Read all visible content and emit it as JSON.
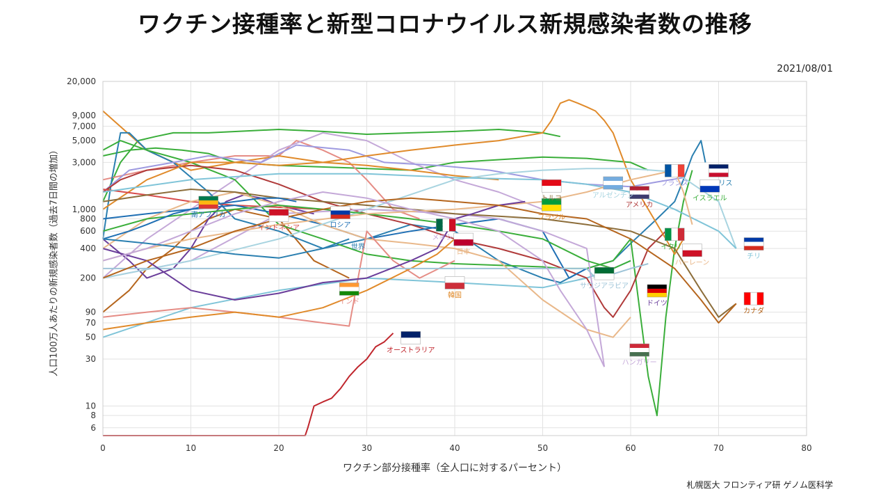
{
  "title": "ワクチン接種率と新型コロナウイルス新規感染者数の推移",
  "date": "2021/08/01",
  "credit": "札幌医大 フロンティア研 ゲノム医科学",
  "chart_data": {
    "type": "line",
    "xlabel": "ワクチン部分接種率（全人口に対するパーセント）",
    "ylabel": "人口100万人あたりの新規感染者数（過去7日間の増加）",
    "xlim": [
      0,
      80
    ],
    "ylim": [
      5,
      20000
    ],
    "yscale": "log",
    "grid": true,
    "x_ticks": [
      0,
      10,
      20,
      30,
      40,
      50,
      60,
      70,
      80
    ],
    "y_ticks": [
      6,
      8,
      10,
      30,
      50,
      70,
      90,
      200,
      400,
      600,
      800,
      1000,
      3000,
      5000,
      7000,
      9000,
      20000
    ],
    "y_tick_labels": [
      "6",
      "8",
      "10",
      "30",
      "50",
      "70",
      "90",
      "200",
      "400",
      "600",
      "800",
      "1,000",
      "3,000",
      "5,000",
      "7,000",
      "9,000",
      "20,000"
    ],
    "series": [
      {
        "name": "イギリス",
        "color": "#2a7fb0",
        "x": [
          0,
          1,
          2,
          3,
          5,
          8,
          12,
          15,
          20,
          25,
          30,
          35,
          40,
          45,
          50,
          52,
          55,
          58,
          60,
          63,
          65,
          66,
          67,
          68,
          68.5
        ],
        "y": [
          500,
          2000,
          6000,
          6000,
          4000,
          3000,
          1500,
          800,
          600,
          400,
          500,
          700,
          600,
          300,
          200,
          180,
          250,
          300,
          450,
          800,
          1200,
          2000,
          3500,
          5000,
          3000
        ],
        "label": {
          "x": 70,
          "y": 2000
        }
      },
      {
        "name": "イスラエル",
        "color": "#3aae3a",
        "x": [
          0,
          2,
          5,
          10,
          15,
          20,
          25,
          30,
          35,
          40,
          45,
          50,
          52,
          55,
          58,
          60,
          61,
          62,
          63,
          64,
          65,
          66,
          67
        ],
        "y": [
          4000,
          5000,
          4000,
          3000,
          2000,
          700,
          500,
          350,
          300,
          280,
          270,
          260,
          250,
          250,
          300,
          500,
          100,
          20,
          8,
          80,
          400,
          1200,
          2500
        ],
        "label": {
          "x": 69,
          "y": 1400
        }
      },
      {
        "name": "フランス",
        "color": "#9e9ae0",
        "x": [
          0,
          3,
          8,
          12,
          18,
          22,
          28,
          32,
          38,
          44,
          50,
          55,
          60,
          63,
          66
        ],
        "y": [
          1500,
          2500,
          3000,
          3500,
          3000,
          4500,
          4000,
          3000,
          2800,
          2500,
          2000,
          1800,
          1700,
          1900,
          2100
        ],
        "label": {
          "x": 65,
          "y": 2000
        }
      },
      {
        "name": "アメリカ",
        "color": "#b03a3a",
        "x": [
          0,
          2,
          5,
          10,
          15,
          20,
          25,
          30,
          35,
          40,
          45,
          50,
          55,
          57,
          58,
          60,
          62,
          64
        ],
        "y": [
          1500,
          2000,
          2500,
          2800,
          2500,
          1800,
          1200,
          900,
          700,
          500,
          400,
          300,
          200,
          100,
          80,
          150,
          400,
          600
        ],
        "label": {
          "x": 61,
          "y": 1200
        }
      },
      {
        "name": "ブラジル",
        "color": "#e08a2a",
        "x": [
          0,
          5,
          10,
          15,
          20,
          25,
          30,
          35,
          40,
          45,
          50,
          51,
          52,
          53,
          54,
          55,
          56,
          57,
          58,
          60,
          62,
          64,
          65,
          66
        ],
        "y": [
          1000,
          2000,
          3000,
          3000,
          2800,
          3000,
          3500,
          4000,
          4500,
          5000,
          6000,
          8000,
          12000,
          13000,
          12000,
          11000,
          10000,
          8000,
          6000,
          2000,
          1000,
          500,
          350,
          500
        ],
        "label": {
          "x": 51,
          "y": 900
        }
      },
      {
        "name": "インドネシア",
        "color": "#d84b4b",
        "x": [
          0,
          5,
          10,
          15,
          20,
          25
        ],
        "y": [
          1600,
          1400,
          1200,
          1100,
          1050,
          1000
        ],
        "label": {
          "x": 20,
          "y": 700
        }
      },
      {
        "name": "ロシア",
        "color": "#1f6fb4",
        "x": [
          0,
          5,
          10,
          15,
          20,
          25,
          30,
          35,
          40,
          45,
          50,
          53,
          55
        ],
        "y": [
          800,
          900,
          1000,
          1100,
          900,
          700,
          500,
          600,
          700,
          800,
          600,
          200,
          250
        ],
        "label": {
          "x": 27,
          "y": 750
        }
      },
      {
        "name": "メキシコ",
        "color": "#c4a8d8",
        "x": [
          0,
          10,
          20,
          30,
          40,
          45,
          50,
          55,
          57
        ],
        "y": [
          200,
          300,
          900,
          1000,
          900,
          800,
          600,
          400,
          25
        ],
        "label": {
          "x": 39,
          "y": 560
        }
      },
      {
        "name": "日本",
        "color": "#e9b88a",
        "x": [
          0,
          5,
          10,
          15,
          20,
          25,
          30,
          35,
          40,
          45,
          50,
          55,
          58,
          60
        ],
        "y": [
          400,
          800,
          1200,
          1500,
          1100,
          700,
          500,
          450,
          400,
          300,
          120,
          60,
          50,
          80
        ],
        "label": {
          "x": 41,
          "y": 400
        }
      },
      {
        "name": "インド",
        "color": "#e58c85",
        "x": [
          0,
          5,
          10,
          15,
          20,
          25,
          28,
          30,
          33,
          36,
          40
        ],
        "y": [
          80,
          90,
          100,
          90,
          80,
          70,
          65,
          600,
          300,
          200,
          300
        ],
        "label": {
          "x": 28,
          "y": 125
        }
      },
      {
        "name": "韓国",
        "color": "#e08a2a",
        "x": [
          0,
          5,
          10,
          15,
          20,
          25,
          30,
          35,
          38,
          40
        ],
        "y": [
          60,
          70,
          80,
          90,
          80,
          100,
          150,
          250,
          350,
          500
        ],
        "label": {
          "x": 40,
          "y": 145
        }
      },
      {
        "name": "オーストラリア",
        "color": "#c0262d",
        "x": [
          0,
          23,
          23.3,
          24,
          25,
          26,
          27,
          28,
          29,
          30,
          31,
          32,
          33
        ],
        "y": [
          5,
          5,
          6,
          10,
          11,
          12,
          15,
          20,
          25,
          30,
          40,
          45,
          55
        ],
        "label": {
          "x": 35,
          "y": 40
        }
      },
      {
        "name": "トルコ",
        "color": "#8c6d3a",
        "x": [
          0,
          5,
          10,
          15,
          20,
          25,
          30,
          35,
          40,
          45,
          50,
          55,
          60,
          65,
          68,
          70,
          72
        ],
        "y": [
          1200,
          1400,
          1600,
          1500,
          1300,
          1200,
          1100,
          1000,
          900,
          850,
          800,
          700,
          600,
          400,
          150,
          80,
          110
        ],
        "label": {
          "x": 51,
          "y": 1400
        }
      },
      {
        "name": "アルゼンチン",
        "color": "#a8d4e0",
        "x": [
          0,
          10,
          20,
          30,
          40,
          45,
          50,
          55,
          60,
          65,
          70,
          72
        ],
        "y": [
          200,
          300,
          500,
          1000,
          2000,
          2300,
          2500,
          2600,
          2600,
          2400,
          1200,
          400
        ],
        "label": {
          "x": 58,
          "y": 1500
        }
      },
      {
        "name": "チリ",
        "color": "#7fc4d8",
        "x": [
          0,
          10,
          20,
          30,
          40,
          50,
          55,
          60,
          65,
          70,
          72
        ],
        "y": [
          1500,
          2000,
          2300,
          2300,
          2100,
          2000,
          1800,
          1500,
          1000,
          600,
          400
        ],
        "label": {
          "x": 74,
          "y": 360
        }
      },
      {
        "name": "イタリア",
        "color": "#3aae3a",
        "x": [
          0,
          5,
          10,
          15,
          20,
          25,
          30,
          35,
          40,
          45,
          50,
          55,
          58,
          60
        ],
        "y": [
          600,
          800,
          900,
          1000,
          1100,
          1000,
          900,
          800,
          700,
          600,
          500,
          300,
          250,
          300
        ],
        "label": {
          "x": 65,
          "y": 450
        }
      },
      {
        "name": "バーレーン",
        "color": "#e9b88a",
        "x": [
          0,
          5,
          10,
          20,
          30,
          40,
          50,
          55,
          60,
          65,
          66,
          67
        ],
        "y": [
          300,
          400,
          500,
          700,
          900,
          1000,
          1200,
          1500,
          2000,
          2500,
          1500,
          700
        ],
        "label": {
          "x": 67,
          "y": 310
        }
      },
      {
        "name": "サウジアラビア",
        "color": "#9ec4d8",
        "x": [
          0,
          10,
          20,
          30,
          40,
          45,
          50,
          55,
          56,
          58,
          60,
          62
        ],
        "y": [
          250,
          250,
          250,
          250,
          250,
          250,
          250,
          250,
          200,
          220,
          250,
          280
        ],
        "label": {
          "x": 57,
          "y": 180
        }
      },
      {
        "name": "ドイツ",
        "color": "#6a3d9a",
        "x": [
          0,
          5,
          10,
          15,
          20,
          25,
          30,
          35,
          38,
          40,
          42,
          45,
          48
        ],
        "y": [
          400,
          300,
          150,
          120,
          140,
          180,
          200,
          300,
          400,
          800,
          900,
          1100,
          1200
        ],
        "label": {
          "x": 63,
          "y": 120
        }
      },
      {
        "name": "カナダ",
        "color": "#b5651d",
        "x": [
          0,
          5,
          10,
          15,
          20,
          25,
          30,
          35,
          40,
          45,
          50,
          55,
          60,
          65,
          68,
          70,
          72
        ],
        "y": [
          200,
          300,
          400,
          600,
          800,
          1000,
          1200,
          1300,
          1200,
          1100,
          900,
          800,
          500,
          250,
          120,
          70,
          110
        ],
        "label": {
          "x": 74,
          "y": 100
        }
      },
      {
        "name": "ハンガリー",
        "color": "#c4a8d8",
        "x": [
          0,
          5,
          10,
          15,
          20,
          25,
          30,
          35,
          40,
          45,
          50,
          52,
          55,
          57
        ],
        "y": [
          300,
          400,
          600,
          900,
          1200,
          1500,
          1300,
          1000,
          800,
          600,
          300,
          150,
          60,
          25
        ],
        "label": {
          "x": 61,
          "y": 30
        }
      },
      {
        "name": "南アフリカ",
        "color": "#1f6fb4",
        "x": [
          0,
          3,
          5,
          8,
          10,
          12,
          15,
          18,
          20,
          22
        ],
        "y": [
          500,
          600,
          700,
          900,
          1000,
          1100,
          1200,
          1300,
          1300,
          1200
        ],
        "label": {
          "x": 12,
          "y": 950
        }
      },
      {
        "name": "世界",
        "color": "#2a7fb0",
        "x": [
          0,
          5,
          10,
          15,
          20,
          25,
          28
        ],
        "y": [
          500,
          450,
          400,
          350,
          320,
          400,
          500
        ],
        "label": {
          "x": 29,
          "y": 450
        }
      }
    ],
    "other_series": [
      {
        "color": "#3aae3a",
        "x": [
          0,
          3,
          6,
          9,
          12,
          15,
          20,
          30,
          35,
          40,
          45,
          50,
          55,
          60,
          62
        ],
        "y": [
          3500,
          4000,
          4200,
          4000,
          3700,
          3000,
          2800,
          2600,
          2500,
          3000,
          3200,
          3400,
          3300,
          3000,
          2500
        ]
      },
      {
        "color": "#3aae3a",
        "x": [
          0,
          2,
          4,
          6,
          8,
          12,
          20,
          25,
          30,
          35,
          40,
          45,
          50,
          52
        ],
        "y": [
          1200,
          3000,
          5000,
          5500,
          6000,
          6000,
          6500,
          6200,
          5800,
          6000,
          6200,
          6500,
          6000,
          5500
        ]
      },
      {
        "color": "#b5651d",
        "x": [
          0,
          3,
          5,
          8,
          10,
          12,
          15,
          20,
          24,
          28
        ],
        "y": [
          90,
          150,
          250,
          400,
          600,
          800,
          1000,
          800,
          300,
          200
        ]
      },
      {
        "color": "#6a3d9a",
        "x": [
          0,
          3,
          5,
          8,
          10,
          12,
          14,
          16,
          18,
          20,
          24
        ],
        "y": [
          500,
          300,
          200,
          250,
          400,
          800,
          1200,
          1400,
          1300,
          1100,
          900
        ]
      },
      {
        "color": "#e58c85",
        "x": [
          0,
          5,
          10,
          15,
          20,
          22,
          25,
          28,
          30,
          33,
          36
        ],
        "y": [
          2000,
          2500,
          3000,
          3500,
          3500,
          5000,
          4000,
          3000,
          2000,
          1000,
          800
        ]
      },
      {
        "color": "#c4a8d8",
        "x": [
          0,
          5,
          10,
          15,
          20,
          25,
          30,
          35,
          40,
          45,
          50
        ],
        "y": [
          200,
          500,
          1000,
          2000,
          4000,
          6000,
          5000,
          3000,
          2000,
          1500,
          1000
        ]
      },
      {
        "color": "#7fc4d8",
        "x": [
          0,
          10,
          20,
          30,
          40,
          50,
          55,
          58,
          60
        ],
        "y": [
          50,
          100,
          150,
          200,
          180,
          160,
          200,
          250,
          300
        ]
      },
      {
        "color": "#e08a2a",
        "x": [
          0,
          5,
          10,
          15,
          20,
          25,
          30,
          35,
          40,
          45
        ],
        "y": [
          10000,
          4000,
          2500,
          3000,
          3500,
          3000,
          2800,
          2500,
          2200,
          2000
        ]
      }
    ]
  },
  "annotations": [
    {
      "label": "南アフリカ",
      "flag": "south-africa"
    },
    {
      "label": "インドネシア",
      "flag": "indonesia"
    },
    {
      "label": "ロシア",
      "flag": "russia"
    },
    {
      "label": "世界",
      "flag": ""
    },
    {
      "label": "インド",
      "flag": "india"
    },
    {
      "label": "メキシコ",
      "flag": "mexico"
    },
    {
      "label": "日本",
      "flag": "japan"
    },
    {
      "label": "韓国",
      "flag": "korea"
    },
    {
      "label": "オーストラリア",
      "flag": "australia"
    },
    {
      "label": "トルコ",
      "flag": "turkey"
    },
    {
      "label": "ブラジル",
      "flag": "brazil"
    },
    {
      "label": "アルゼンチン",
      "flag": "argentina"
    },
    {
      "label": "アメリカ",
      "flag": "usa"
    },
    {
      "label": "フランス",
      "flag": "france"
    },
    {
      "label": "イギリス",
      "flag": "uk"
    },
    {
      "label": "イスラエル",
      "flag": "israel"
    },
    {
      "label": "イタリア",
      "flag": "italy"
    },
    {
      "label": "バーレーン",
      "flag": "bahrain"
    },
    {
      "label": "チリ",
      "flag": "chile"
    },
    {
      "label": "サウジアラビア",
      "flag": "saudi"
    },
    {
      "label": "ドイツ",
      "flag": "germany"
    },
    {
      "label": "カナダ",
      "flag": "canada"
    },
    {
      "label": "ハンガリー",
      "flag": "hungary"
    }
  ]
}
